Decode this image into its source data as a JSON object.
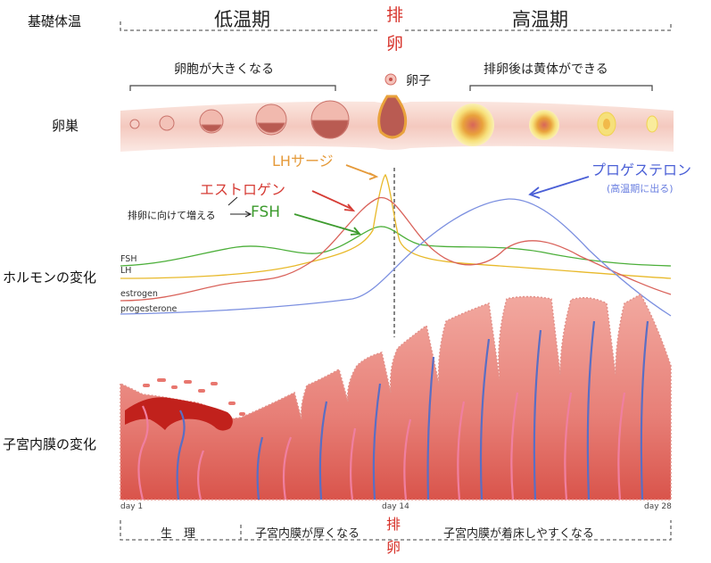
{
  "header": {
    "basal_temp_label": "基礎体温",
    "low_phase": "低温期",
    "high_phase": "高温期",
    "ovulation_char1": "排",
    "ovulation_char2": "卵"
  },
  "ovary": {
    "row_label": "卵巣",
    "follicle_growth": "卵胞が大きくなる",
    "egg_label": "卵子",
    "corpus_luteum": "排卵後は黄体ができる"
  },
  "hormones": {
    "row_label": "ホルモンの変化",
    "lh_surge": "LHサージ",
    "estrogen_callout": "エストロゲン",
    "fsh_callout": "FSH",
    "fsh_note": "排卵に向けて増える",
    "progesterone_callout": "プロゲステロン",
    "progesterone_note": "(高温期に出る)",
    "series_names": [
      "FSH",
      "LH",
      "estrogen",
      "progesterone"
    ],
    "colors": {
      "FSH": "#4caf3a",
      "LH": "#e8b92a",
      "estrogen": "#d9625a",
      "progesterone": "#7b8fe0"
    }
  },
  "chart_data": {
    "type": "line",
    "x": [
      1,
      14,
      28
    ],
    "xlabels": [
      "day 1",
      "day 14",
      "day 28"
    ],
    "series": [
      {
        "name": "FSH"
      },
      {
        "name": "LH"
      },
      {
        "name": "estrogen"
      },
      {
        "name": "progesterone"
      }
    ]
  },
  "endometrium": {
    "row_label": "子宮内膜の変化",
    "day1": "day 1",
    "day14": "day 14",
    "day28": "day 28"
  },
  "bottom": {
    "menstruation": "生　理",
    "thickening": "子宮内膜が厚くなる",
    "ovulation_char1": "排",
    "ovulation_char2": "卵",
    "implantation": "子宮内膜が着床しやすくなる"
  }
}
